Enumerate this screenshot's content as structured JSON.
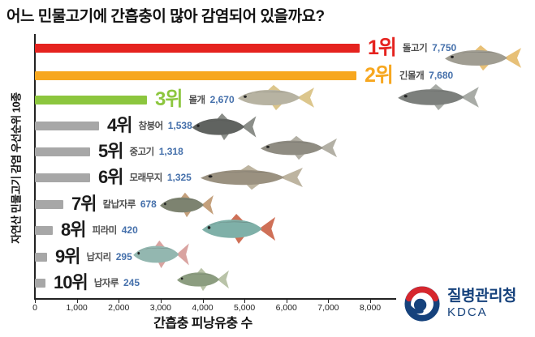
{
  "title": "어느 민물고기에 간흡충이 많아 감염되어 있을까요?",
  "chart_data": {
    "type": "bar",
    "orientation": "horizontal",
    "title": "어느 민물고기에 간흡충이 많아 감염되어 있을까요?",
    "xlabel": "간흡충 피낭유충 수",
    "ylabel": "자연산 민물고기 감염 우선순위 10종",
    "xlim": [
      0,
      8000
    ],
    "grid": false,
    "x_ticks": [
      "0",
      "1,000",
      "2,000",
      "3,000",
      "4,000",
      "5,000",
      "6,000",
      "7,000",
      "8,000"
    ],
    "rows": [
      {
        "rank": "1위",
        "name": "돌고기",
        "value": 7750,
        "value_label": "7,750",
        "bar_color": "#e5231f",
        "rank_color": "#e5231f",
        "fish_colors": {
          "body": "#a09d92",
          "fin": "#e7c077"
        }
      },
      {
        "rank": "2위",
        "name": "긴몰개",
        "value": 7680,
        "value_label": "7,680",
        "bar_color": "#f7a71f",
        "rank_color": "#f7a71f",
        "fish_colors": {
          "body": "#7c7f7c",
          "fin": "#a8aba6"
        }
      },
      {
        "rank": "3위",
        "name": "몰개",
        "value": 2670,
        "value_label": "2,670",
        "bar_color": "#8cc63e",
        "rank_color": "#8cc63e",
        "fish_colors": {
          "body": "#b7b3a2",
          "fin": "#dcc68c"
        }
      },
      {
        "rank": "4위",
        "name": "참붕어",
        "value": 1538,
        "value_label": "1,538",
        "bar_color": "#a7a7a7",
        "rank_color": "#1b1b1b",
        "fish_colors": {
          "body": "#606360",
          "fin": "#8b8e89"
        }
      },
      {
        "rank": "5위",
        "name": "중고기",
        "value": 1318,
        "value_label": "1,318",
        "bar_color": "#a7a7a7",
        "rank_color": "#1b1b1b",
        "fish_colors": {
          "body": "#8f8c82",
          "fin": "#b3b0a5"
        }
      },
      {
        "rank": "6위",
        "name": "모래무지",
        "value": 1325,
        "value_label": "1,325",
        "bar_color": "#a7a7a7",
        "rank_color": "#1b1b1b",
        "fish_colors": {
          "body": "#9a9180",
          "fin": "#bdb4a0"
        }
      },
      {
        "rank": "7위",
        "name": "칼납자루",
        "value": 678,
        "value_label": "678",
        "bar_color": "#a7a7a7",
        "rank_color": "#1b1b1b",
        "fish_colors": {
          "body": "#7d8370",
          "fin": "#c4a07c"
        }
      },
      {
        "rank": "8위",
        "name": "피라미",
        "value": 420,
        "value_label": "420",
        "bar_color": "#a7a7a7",
        "rank_color": "#1b1b1b",
        "fish_colors": {
          "body": "#7fb0a8",
          "fin": "#cf7057"
        }
      },
      {
        "rank": "9위",
        "name": "납지리",
        "value": 295,
        "value_label": "295",
        "bar_color": "#a7a7a7",
        "rank_color": "#1b1b1b",
        "fish_colors": {
          "body": "#93b7b0",
          "fin": "#d9a3a0"
        }
      },
      {
        "rank": "10위",
        "name": "납자루",
        "value": 245,
        "value_label": "245",
        "bar_color": "#a7a7a7",
        "rank_color": "#1b1b1b",
        "fish_colors": {
          "body": "#8c9d80",
          "fin": "#b9c3a8"
        }
      }
    ]
  },
  "logo": {
    "agency": "질병관리청",
    "abbr": "KDCA",
    "navy": "#16427c",
    "red": "#d6272e"
  },
  "colors": {
    "rank1": "#e5231f",
    "rank2": "#f7a71f",
    "rank3": "#8cc63e",
    "gray_bar": "#a7a7a7",
    "value_text": "#4570ab",
    "name_text": "#4e4e4e"
  }
}
